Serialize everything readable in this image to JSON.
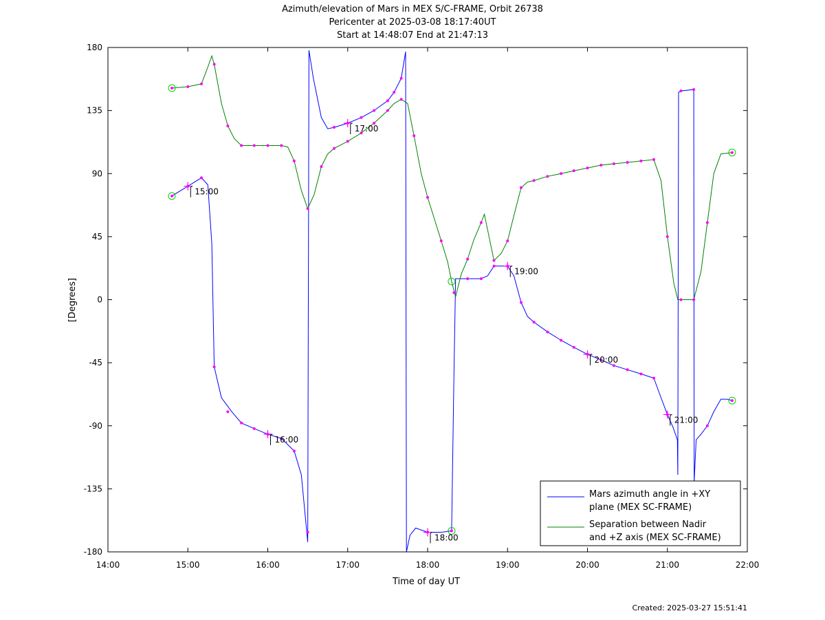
{
  "chart_data": {
    "type": "line",
    "title": [
      "Azimuth/elevation of Mars in MEX S/C-FRAME,  Orbit 26738",
      "Pericenter at 2025-03-08 18:17:40UT",
      "Start at 14:48:07 End at 21:47:13"
    ],
    "xlabel": "Time of day UT",
    "ylabel": "[Degrees]",
    "xlim": [
      14.0,
      22.0
    ],
    "ylim": [
      -180,
      180
    ],
    "xticks": [
      14,
      15,
      16,
      17,
      18,
      19,
      20,
      21,
      22
    ],
    "xtick_labels": [
      "14:00",
      "15:00",
      "16:00",
      "17:00",
      "18:00",
      "19:00",
      "20:00",
      "21:00",
      "22:00"
    ],
    "yticks": [
      180,
      135,
      90,
      45,
      0,
      -45,
      -90,
      -135,
      -180
    ],
    "ytick_labels": [
      "180",
      "135",
      "90",
      "45",
      "0",
      "-45",
      "-90",
      "-135",
      "-180"
    ],
    "legend_position": "bottom-right",
    "series": [
      {
        "name": "Mars azimuth angle in +XY plane (MEX SC-FRAME)",
        "legend_lines": [
          "Mars azimuth angle in +XY",
          "plane (MEX SC-FRAME)"
        ],
        "color": "#0000ff",
        "points": [
          [
            14.8,
            74
          ],
          [
            15.0,
            81
          ],
          [
            15.17,
            87
          ],
          [
            15.25,
            82
          ],
          [
            15.3,
            40
          ],
          [
            15.33,
            -48
          ],
          [
            15.42,
            -70
          ],
          [
            15.55,
            -80
          ],
          [
            15.67,
            -88
          ],
          [
            15.83,
            -92
          ],
          [
            16.0,
            -96
          ],
          [
            16.17,
            -99
          ],
          [
            16.33,
            -108
          ],
          [
            16.42,
            -125
          ],
          [
            16.47,
            -155
          ],
          [
            16.5,
            -173
          ],
          [
            16.515,
            178
          ],
          [
            16.57,
            158
          ],
          [
            16.67,
            130
          ],
          [
            16.75,
            122
          ],
          [
            16.83,
            123
          ],
          [
            17.0,
            126
          ],
          [
            17.17,
            130
          ],
          [
            17.33,
            135
          ],
          [
            17.5,
            142
          ],
          [
            17.58,
            148
          ],
          [
            17.67,
            158
          ],
          [
            17.725,
            177
          ],
          [
            17.735,
            -180
          ],
          [
            17.78,
            -168
          ],
          [
            17.85,
            -163
          ],
          [
            18.0,
            -166
          ],
          [
            18.17,
            -166
          ],
          [
            18.3,
            -165
          ],
          [
            18.33,
            -50
          ],
          [
            18.35,
            15
          ],
          [
            18.5,
            15
          ],
          [
            18.67,
            15
          ],
          [
            18.75,
            17
          ],
          [
            18.83,
            24
          ],
          [
            19.0,
            24
          ],
          [
            19.08,
            17
          ],
          [
            19.17,
            -2
          ],
          [
            19.25,
            -12
          ],
          [
            19.33,
            -16
          ],
          [
            19.5,
            -23
          ],
          [
            19.67,
            -29
          ],
          [
            19.83,
            -34
          ],
          [
            20.0,
            -39
          ],
          [
            20.17,
            -43
          ],
          [
            20.33,
            -47
          ],
          [
            20.5,
            -50
          ],
          [
            20.67,
            -53
          ],
          [
            20.83,
            -56
          ],
          [
            20.92,
            -70
          ],
          [
            21.0,
            -82
          ],
          [
            21.07,
            -91
          ],
          [
            21.125,
            -100
          ],
          [
            21.13,
            -125
          ],
          [
            21.14,
            148
          ],
          [
            21.17,
            149
          ],
          [
            21.33,
            150
          ],
          [
            21.335,
            -130
          ],
          [
            21.36,
            -100
          ],
          [
            21.42,
            -96
          ],
          [
            21.5,
            -90
          ],
          [
            21.58,
            -80
          ],
          [
            21.67,
            -71
          ],
          [
            21.75,
            -71
          ],
          [
            21.81,
            -72
          ]
        ]
      },
      {
        "name": "Separation between Nadir and +Z axis (MEX SC-FRAME)",
        "legend_lines": [
          "Separation between Nadir",
          "and +Z axis (MEX SC-FRAME)"
        ],
        "color": "#008000",
        "points": [
          [
            14.8,
            151
          ],
          [
            15.0,
            152
          ],
          [
            15.17,
            154
          ],
          [
            15.25,
            166
          ],
          [
            15.3,
            174
          ],
          [
            15.33,
            168
          ],
          [
            15.42,
            140
          ],
          [
            15.5,
            124
          ],
          [
            15.58,
            115
          ],
          [
            15.67,
            110
          ],
          [
            15.83,
            110
          ],
          [
            16.0,
            110
          ],
          [
            16.17,
            110
          ],
          [
            16.25,
            109
          ],
          [
            16.33,
            99
          ],
          [
            16.42,
            78
          ],
          [
            16.5,
            65
          ],
          [
            16.58,
            75
          ],
          [
            16.67,
            95
          ],
          [
            16.75,
            104
          ],
          [
            16.83,
            108
          ],
          [
            17.0,
            113
          ],
          [
            17.17,
            119
          ],
          [
            17.33,
            126
          ],
          [
            17.5,
            135
          ],
          [
            17.58,
            140
          ],
          [
            17.67,
            143
          ],
          [
            17.75,
            140
          ],
          [
            17.83,
            117
          ],
          [
            17.92,
            90
          ],
          [
            18.0,
            73
          ],
          [
            18.17,
            42
          ],
          [
            18.25,
            27
          ],
          [
            18.3,
            13
          ],
          [
            18.35,
            2
          ],
          [
            18.42,
            18
          ],
          [
            18.5,
            29
          ],
          [
            18.58,
            43
          ],
          [
            18.67,
            55
          ],
          [
            18.71,
            61
          ],
          [
            18.75,
            50
          ],
          [
            18.83,
            28
          ],
          [
            18.92,
            33
          ],
          [
            19.0,
            42
          ],
          [
            19.08,
            60
          ],
          [
            19.17,
            80
          ],
          [
            19.25,
            84
          ],
          [
            19.33,
            85
          ],
          [
            19.5,
            88
          ],
          [
            19.67,
            90
          ],
          [
            19.83,
            92
          ],
          [
            20.0,
            94
          ],
          [
            20.17,
            96
          ],
          [
            20.33,
            97
          ],
          [
            20.5,
            98
          ],
          [
            20.67,
            99
          ],
          [
            20.83,
            100
          ],
          [
            20.92,
            85
          ],
          [
            21.0,
            45
          ],
          [
            21.08,
            12
          ],
          [
            21.13,
            0
          ],
          [
            21.17,
            0
          ],
          [
            21.33,
            0
          ],
          [
            21.42,
            20
          ],
          [
            21.5,
            55
          ],
          [
            21.58,
            90
          ],
          [
            21.67,
            104
          ],
          [
            21.81,
            105
          ]
        ]
      }
    ],
    "markers": [
      [
        14.8,
        74
      ],
      [
        15.0,
        81
      ],
      [
        15.17,
        87
      ],
      [
        15.33,
        -48
      ],
      [
        15.5,
        -80
      ],
      [
        15.67,
        -88
      ],
      [
        15.83,
        -92
      ],
      [
        16.0,
        -96
      ],
      [
        16.17,
        -99
      ],
      [
        16.33,
        -108
      ],
      [
        16.5,
        -166
      ],
      [
        16.83,
        123
      ],
      [
        17.0,
        126
      ],
      [
        17.17,
        130
      ],
      [
        17.33,
        135
      ],
      [
        17.5,
        142
      ],
      [
        17.58,
        148
      ],
      [
        17.67,
        158
      ],
      [
        18.0,
        -166
      ],
      [
        18.3,
        -165
      ],
      [
        18.5,
        15
      ],
      [
        18.67,
        15
      ],
      [
        18.83,
        24
      ],
      [
        19.0,
        24
      ],
      [
        19.17,
        -2
      ],
      [
        19.33,
        -16
      ],
      [
        19.5,
        -23
      ],
      [
        19.67,
        -29
      ],
      [
        19.83,
        -34
      ],
      [
        20.0,
        -39
      ],
      [
        20.17,
        -43
      ],
      [
        20.33,
        -47
      ],
      [
        20.5,
        -50
      ],
      [
        20.67,
        -53
      ],
      [
        20.83,
        -56
      ],
      [
        21.0,
        -82
      ],
      [
        21.17,
        149
      ],
      [
        21.33,
        150
      ],
      [
        21.5,
        -90
      ],
      [
        21.81,
        -72
      ],
      [
        14.8,
        151
      ],
      [
        15.0,
        152
      ],
      [
        15.17,
        154
      ],
      [
        15.33,
        168
      ],
      [
        15.5,
        124
      ],
      [
        15.67,
        110
      ],
      [
        15.83,
        110
      ],
      [
        16.0,
        110
      ],
      [
        16.17,
        110
      ],
      [
        16.33,
        99
      ],
      [
        16.5,
        65
      ],
      [
        16.67,
        95
      ],
      [
        16.83,
        108
      ],
      [
        17.0,
        113
      ],
      [
        17.17,
        119
      ],
      [
        17.33,
        126
      ],
      [
        17.5,
        135
      ],
      [
        17.67,
        143
      ],
      [
        17.83,
        117
      ],
      [
        18.0,
        73
      ],
      [
        18.17,
        42
      ],
      [
        18.33,
        5
      ],
      [
        18.5,
        29
      ],
      [
        18.67,
        55
      ],
      [
        18.83,
        28
      ],
      [
        19.0,
        42
      ],
      [
        19.17,
        80
      ],
      [
        19.33,
        85
      ],
      [
        19.5,
        88
      ],
      [
        19.67,
        90
      ],
      [
        19.83,
        92
      ],
      [
        20.0,
        94
      ],
      [
        20.17,
        96
      ],
      [
        20.33,
        97
      ],
      [
        20.5,
        98
      ],
      [
        20.67,
        99
      ],
      [
        20.83,
        100
      ],
      [
        21.0,
        45
      ],
      [
        21.17,
        0
      ],
      [
        21.33,
        0
      ],
      [
        21.5,
        55
      ],
      [
        21.81,
        105
      ]
    ],
    "circle_markers": [
      [
        14.8,
        74
      ],
      [
        14.8,
        151
      ],
      [
        18.3,
        13
      ],
      [
        18.3,
        -165
      ],
      [
        21.81,
        105
      ],
      [
        21.81,
        -72
      ]
    ],
    "hour_annotations": [
      {
        "x": 15.0,
        "y": 81,
        "label": "15:00"
      },
      {
        "x": 16.0,
        "y": -96,
        "label": "16:00"
      },
      {
        "x": 17.0,
        "y": 126,
        "label": "17:00"
      },
      {
        "x": 18.0,
        "y": -166,
        "label": "18:00"
      },
      {
        "x": 19.0,
        "y": 24,
        "label": "19:00"
      },
      {
        "x": 20.0,
        "y": -39,
        "label": "20:00"
      },
      {
        "x": 21.0,
        "y": -82,
        "label": "21:00"
      }
    ]
  },
  "footer": "Created: 2025-03-27 15:51:41"
}
